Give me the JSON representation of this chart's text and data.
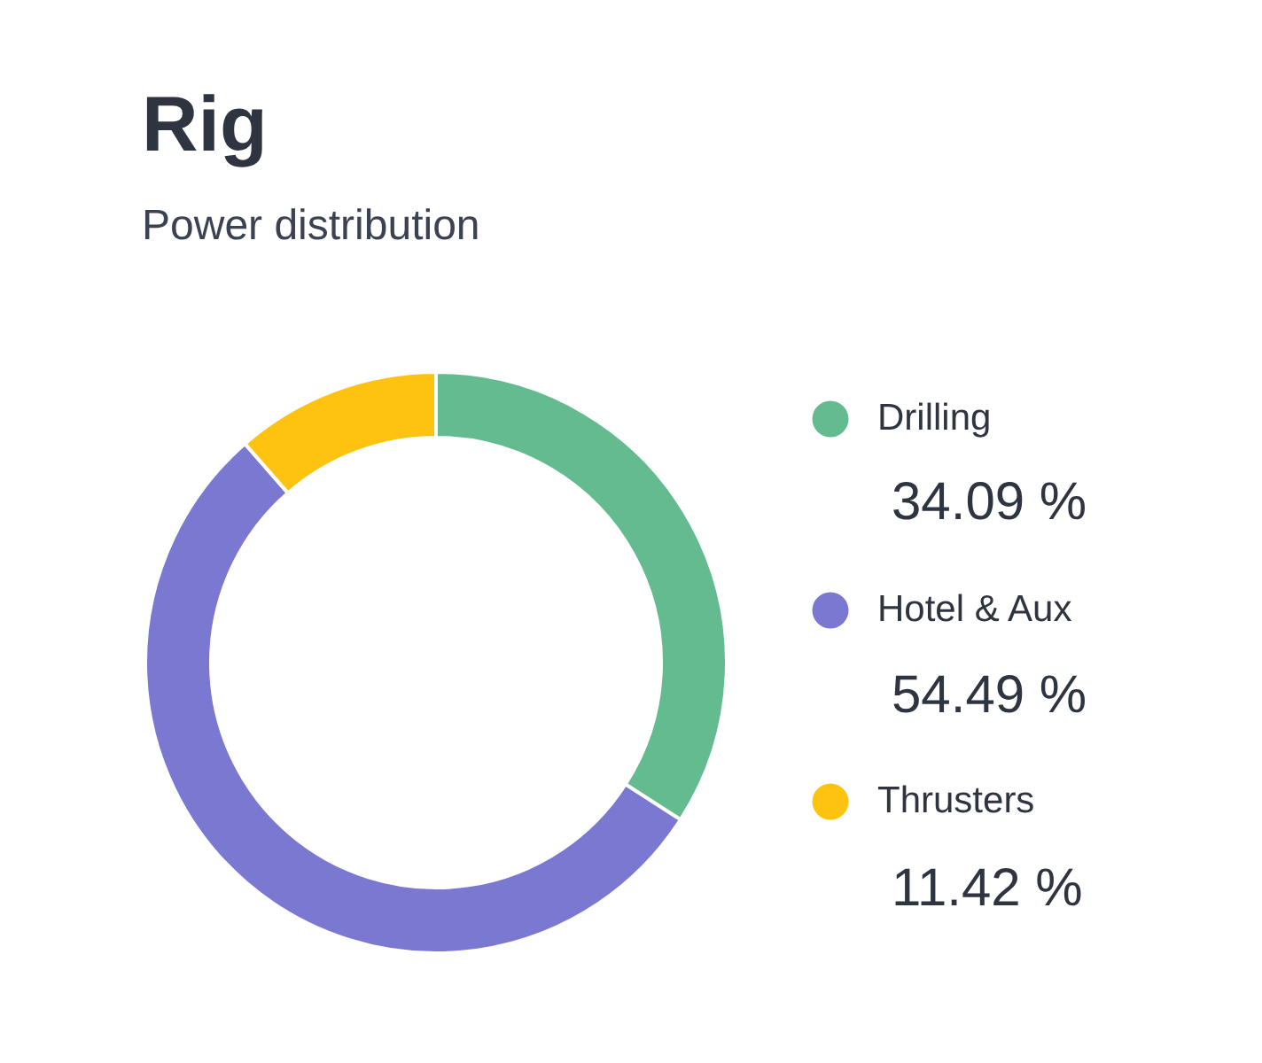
{
  "chart_data": {
    "type": "donut",
    "title": "Rig",
    "subtitle": "Power distribution",
    "categories": [
      "Drilling",
      "Hotel & Aux",
      "Thrusters"
    ],
    "values": [
      34.09,
      54.49,
      11.42
    ],
    "colors": [
      "#63bb8f",
      "#7b78d2",
      "#fec311"
    ],
    "value_labels": [
      "34.09 %",
      "54.49 %",
      "11.42 %"
    ],
    "legend": "right"
  }
}
